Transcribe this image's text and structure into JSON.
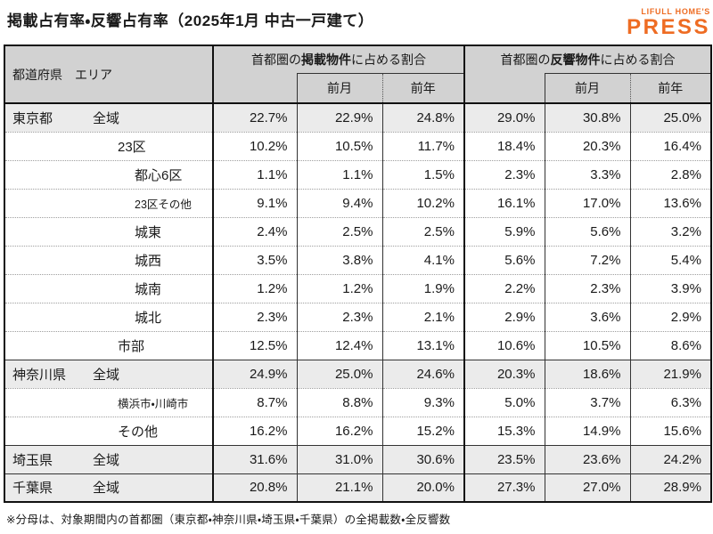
{
  "page": {
    "title": "掲載占有率・反響占有率（2025年1月 中古一戸建て）",
    "footnote": "※分母は、対象期間内の首都圏（東京都・神奈川県・埼玉県・千葉県）の全掲載数・全反響数"
  },
  "logo": {
    "line1": "LIFULL HOME'S",
    "line2": "PRESS",
    "color": "#ee6c23"
  },
  "colors": {
    "header_bg": "#d2d2d2",
    "shaded_row_bg": "#ebebeb",
    "border": "#111111"
  },
  "table": {
    "corner_header": "都道府県　エリア",
    "groups": [
      {
        "prefix": "首都圏の",
        "em": "掲載物件",
        "suffix": "に占める割合"
      },
      {
        "prefix": "首都圏の",
        "em": "反響物件",
        "suffix": "に占める割合"
      }
    ],
    "sub_headers": [
      "前月",
      "前年"
    ],
    "rows": [
      {
        "prefecture": "東京都",
        "area": "全域",
        "indent": 0,
        "small": false,
        "shaded": true,
        "group_start": true,
        "listing": [
          "22.7%",
          "22.9%",
          "24.8%"
        ],
        "response": [
          "29.0%",
          "30.8%",
          "25.0%"
        ]
      },
      {
        "prefecture": "",
        "area": "23区",
        "indent": 1,
        "small": false,
        "shaded": false,
        "group_start": false,
        "listing": [
          "10.2%",
          "10.5%",
          "11.7%"
        ],
        "response": [
          "18.4%",
          "20.3%",
          "16.4%"
        ]
      },
      {
        "prefecture": "",
        "area": "都心6区",
        "indent": 2,
        "small": false,
        "shaded": false,
        "group_start": false,
        "listing": [
          "1.1%",
          "1.1%",
          "1.5%"
        ],
        "response": [
          "2.3%",
          "3.3%",
          "2.8%"
        ]
      },
      {
        "prefecture": "",
        "area": "23区その他",
        "indent": 2,
        "small": true,
        "shaded": false,
        "group_start": false,
        "listing": [
          "9.1%",
          "9.4%",
          "10.2%"
        ],
        "response": [
          "16.1%",
          "17.0%",
          "13.6%"
        ]
      },
      {
        "prefecture": "",
        "area": "城東",
        "indent": 2,
        "small": false,
        "shaded": false,
        "group_start": false,
        "listing": [
          "2.4%",
          "2.5%",
          "2.5%"
        ],
        "response": [
          "5.9%",
          "5.6%",
          "3.2%"
        ]
      },
      {
        "prefecture": "",
        "area": "城西",
        "indent": 2,
        "small": false,
        "shaded": false,
        "group_start": false,
        "listing": [
          "3.5%",
          "3.8%",
          "4.1%"
        ],
        "response": [
          "5.6%",
          "7.2%",
          "5.4%"
        ]
      },
      {
        "prefecture": "",
        "area": "城南",
        "indent": 2,
        "small": false,
        "shaded": false,
        "group_start": false,
        "listing": [
          "1.2%",
          "1.2%",
          "1.9%"
        ],
        "response": [
          "2.2%",
          "2.3%",
          "3.9%"
        ]
      },
      {
        "prefecture": "",
        "area": "城北",
        "indent": 2,
        "small": false,
        "shaded": false,
        "group_start": false,
        "listing": [
          "2.3%",
          "2.3%",
          "2.1%"
        ],
        "response": [
          "2.9%",
          "3.6%",
          "2.9%"
        ]
      },
      {
        "prefecture": "",
        "area": "市部",
        "indent": 1,
        "small": false,
        "shaded": false,
        "group_start": false,
        "listing": [
          "12.5%",
          "12.4%",
          "13.1%"
        ],
        "response": [
          "10.6%",
          "10.5%",
          "8.6%"
        ]
      },
      {
        "prefecture": "神奈川県",
        "area": "全域",
        "indent": 0,
        "small": false,
        "shaded": true,
        "group_start": true,
        "listing": [
          "24.9%",
          "25.0%",
          "24.6%"
        ],
        "response": [
          "20.3%",
          "18.6%",
          "21.9%"
        ]
      },
      {
        "prefecture": "",
        "area": "横浜市・川崎市",
        "indent": 1,
        "small": true,
        "shaded": false,
        "group_start": false,
        "listing": [
          "8.7%",
          "8.8%",
          "9.3%"
        ],
        "response": [
          "5.0%",
          "3.7%",
          "6.3%"
        ]
      },
      {
        "prefecture": "",
        "area": "その他",
        "indent": 1,
        "small": false,
        "shaded": false,
        "group_start": false,
        "listing": [
          "16.2%",
          "16.2%",
          "15.2%"
        ],
        "response": [
          "15.3%",
          "14.9%",
          "15.6%"
        ]
      },
      {
        "prefecture": "埼玉県",
        "area": "全域",
        "indent": 0,
        "small": false,
        "shaded": true,
        "group_start": true,
        "listing": [
          "31.6%",
          "31.0%",
          "30.6%"
        ],
        "response": [
          "23.5%",
          "23.6%",
          "24.2%"
        ]
      },
      {
        "prefecture": "千葉県",
        "area": "全域",
        "indent": 0,
        "small": false,
        "shaded": true,
        "group_start": true,
        "listing": [
          "20.8%",
          "21.1%",
          "20.0%"
        ],
        "response": [
          "27.3%",
          "27.0%",
          "28.9%"
        ]
      }
    ]
  }
}
